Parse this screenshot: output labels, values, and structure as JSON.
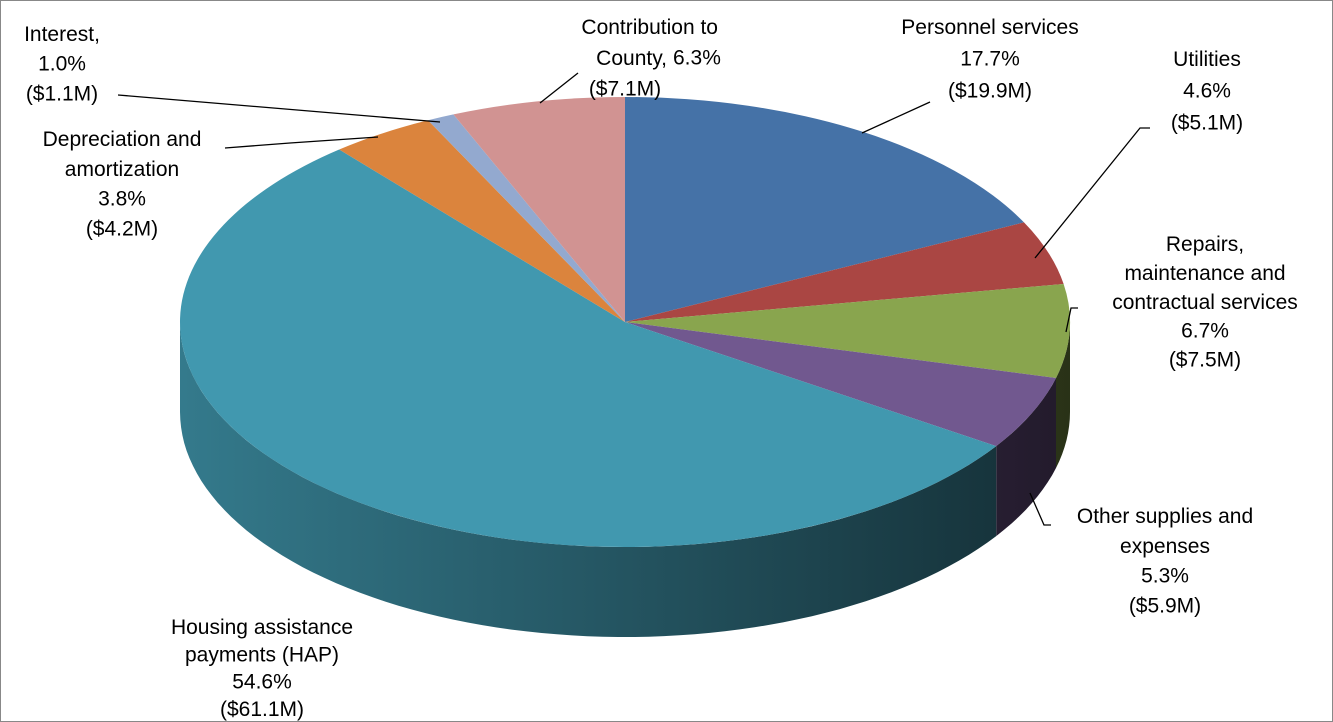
{
  "chart_data": {
    "type": "pie3d",
    "categories": [
      "Personnel services",
      "Utilities",
      "Repairs, maintenance and contractual services",
      "Other supplies and expenses",
      "Housing assistance payments (HAP)",
      "Depreciation and amortization",
      "Interest,",
      "Contribution to County,"
    ],
    "values": [
      17.7,
      4.6,
      6.7,
      5.3,
      54.6,
      3.8,
      1.0,
      6.3
    ],
    "value_labels": [
      "17.7%",
      "4.6%",
      "6.7%",
      "5.3%",
      "54.6%",
      "3.8%",
      "1.0%",
      "6.3%"
    ],
    "amount_labels": [
      "($19.9M)",
      "($5.1M)",
      "($7.5M)",
      "($5.9M)",
      "($61.1M)",
      "($4.2M)",
      "($1.1M)",
      "($7.1M)"
    ],
    "colors": [
      "#4572a7",
      "#aa4643",
      "#89a54e",
      "#71588f",
      "#4198af",
      "#db843d",
      "#93a9cf",
      "#d19392"
    ]
  }
}
